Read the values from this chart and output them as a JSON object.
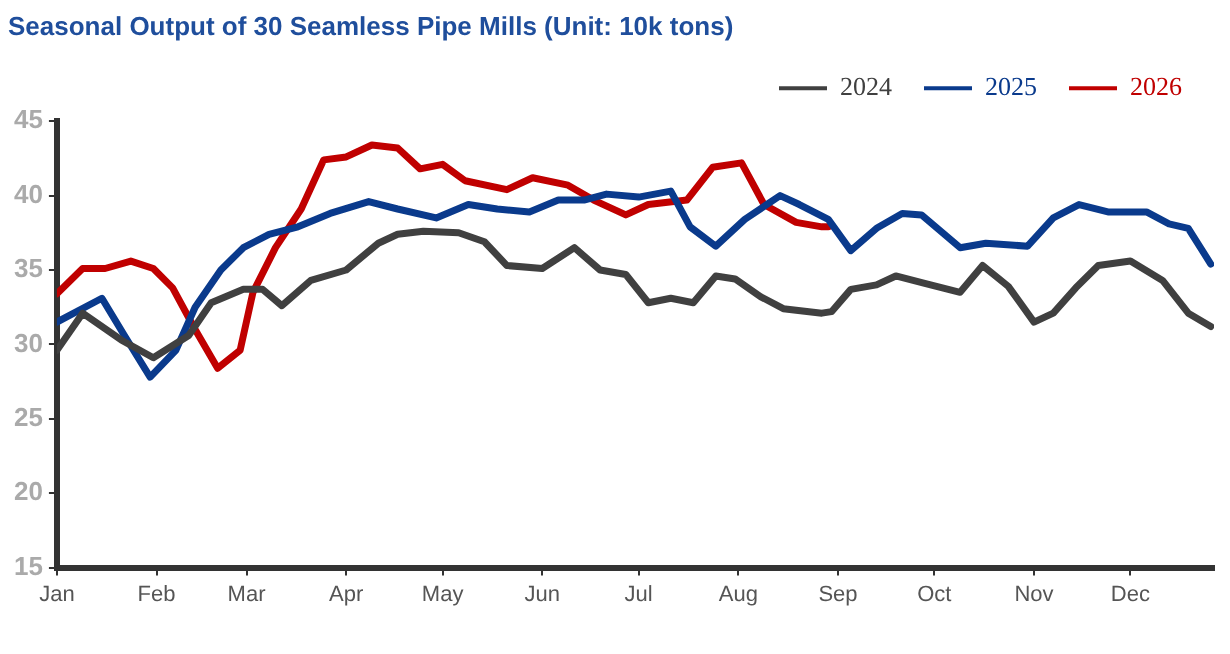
{
  "chart_data": {
    "type": "line",
    "title": "Seasonal Output of 30 Seamless Pipe Mills (Unit: 10k tons)",
    "xlim": [
      "--01-01",
      "--12-27"
    ],
    "xticks": [
      {
        "value": "--01-01",
        "label": "Jan"
      },
      {
        "value": "--02-01",
        "label": "Feb"
      },
      {
        "value": "--03-01",
        "label": "Mar"
      },
      {
        "value": "--04-01",
        "label": "Apr"
      },
      {
        "value": "--05-01",
        "label": "May"
      },
      {
        "value": "--06-01",
        "label": "Jun"
      },
      {
        "value": "--07-01",
        "label": "Jul"
      },
      {
        "value": "--08-01",
        "label": "Aug"
      },
      {
        "value": "--09-01",
        "label": "Sep"
      },
      {
        "value": "--10-01",
        "label": "Oct"
      },
      {
        "value": "--11-01",
        "label": "Nov"
      },
      {
        "value": "--12-01",
        "label": "Dec"
      }
    ],
    "ylim": [
      15,
      45
    ],
    "yticks": [
      15,
      20,
      25,
      30,
      35,
      40,
      45
    ],
    "grid": false,
    "legend": "top right",
    "marker": "none",
    "line_style": "solid",
    "series": [
      {
        "name": "2024",
        "color": "#404040",
        "x": [
          "--01-01",
          "--01-09",
          "--01-21",
          "--01-31",
          "--02-11",
          "--02-18",
          "--02-28",
          "--03-06",
          "--03-12",
          "--03-21",
          "--04-01",
          "--04-11",
          "--04-17",
          "--04-25",
          "--05-06",
          "--05-14",
          "--05-21",
          "--06-01",
          "--06-11",
          "--06-19",
          "--06-27",
          "--07-04",
          "--07-11",
          "--07-18",
          "--07-25",
          "--07-31",
          "--08-08",
          "--08-15",
          "--08-27",
          "--08-30",
          "--09-05",
          "--09-13",
          "--09-19",
          "--09-28",
          "--10-09",
          "--10-16",
          "--10-24",
          "--11-01",
          "--11-07",
          "--11-14",
          "--11-21",
          "--12-01",
          "--12-11",
          "--12-19",
          "--12-26"
        ],
        "values": [
          29.6,
          32.1,
          30.3,
          29.1,
          30.6,
          32.8,
          33.7,
          33.7,
          32.6,
          34.3,
          35.0,
          36.8,
          37.4,
          37.6,
          37.5,
          36.9,
          35.3,
          35.1,
          36.5,
          35.0,
          34.7,
          32.8,
          33.1,
          32.8,
          34.6,
          34.4,
          33.2,
          32.4,
          32.1,
          32.2,
          33.7,
          34.0,
          34.6,
          34.1,
          33.5,
          35.3,
          33.9,
          31.5,
          32.1,
          33.8,
          35.3,
          35.6,
          34.3,
          32.1,
          31.2
        ]
      },
      {
        "name": "2025",
        "color": "#0a3a8c",
        "x": [
          "--01-01",
          "--01-15",
          "--01-22",
          "--01-30",
          "--02-07",
          "--02-13",
          "--02-21",
          "--02-28",
          "--03-08",
          "--03-17",
          "--03-27",
          "--04-08",
          "--04-17",
          "--04-29",
          "--05-09",
          "--05-18",
          "--05-28",
          "--06-06",
          "--06-14",
          "--06-21",
          "--07-01",
          "--07-11",
          "--07-17",
          "--07-25",
          "--08-03",
          "--08-14",
          "--08-20",
          "--08-29",
          "--09-05",
          "--09-13",
          "--09-21",
          "--09-27",
          "--10-09",
          "--10-17",
          "--10-30",
          "--11-07",
          "--11-15",
          "--11-24",
          "--12-06",
          "--12-13",
          "--12-19",
          "--12-26"
        ],
        "values": [
          31.5,
          33.1,
          30.6,
          27.8,
          29.6,
          32.5,
          35.0,
          36.5,
          37.4,
          37.9,
          38.8,
          39.6,
          39.1,
          38.5,
          39.4,
          39.1,
          38.9,
          39.7,
          39.7,
          40.1,
          39.9,
          40.3,
          37.9,
          36.6,
          38.4,
          40.0,
          39.4,
          38.4,
          36.3,
          37.8,
          38.8,
          38.7,
          36.5,
          36.8,
          36.6,
          38.5,
          39.4,
          38.9,
          38.9,
          38.1,
          37.8,
          35.4
        ]
      },
      {
        "name": "2026",
        "color": "#c00000",
        "x": [
          "--01-01",
          "--01-09",
          "--01-16",
          "--01-24",
          "--01-31",
          "--02-06",
          "--02-13",
          "--02-20",
          "--02-27",
          "--03-03",
          "--03-10",
          "--03-18",
          "--03-25",
          "--04-01",
          "--04-09",
          "--04-17",
          "--04-24",
          "--05-01",
          "--05-08",
          "--05-21",
          "--05-29",
          "--06-09",
          "--06-17",
          "--06-27",
          "--07-04",
          "--07-16",
          "--07-24",
          "--08-02",
          "--08-09",
          "--08-19",
          "--08-27",
          "--08-29"
        ],
        "values": [
          33.4,
          35.1,
          35.1,
          35.6,
          35.1,
          33.8,
          31.0,
          28.4,
          29.6,
          33.5,
          36.5,
          39.1,
          42.4,
          42.6,
          43.4,
          43.2,
          41.8,
          42.1,
          41.0,
          40.4,
          41.2,
          40.7,
          39.7,
          38.7,
          39.4,
          39.7,
          41.9,
          42.2,
          39.4,
          38.2,
          37.9,
          37.9
        ]
      }
    ]
  }
}
